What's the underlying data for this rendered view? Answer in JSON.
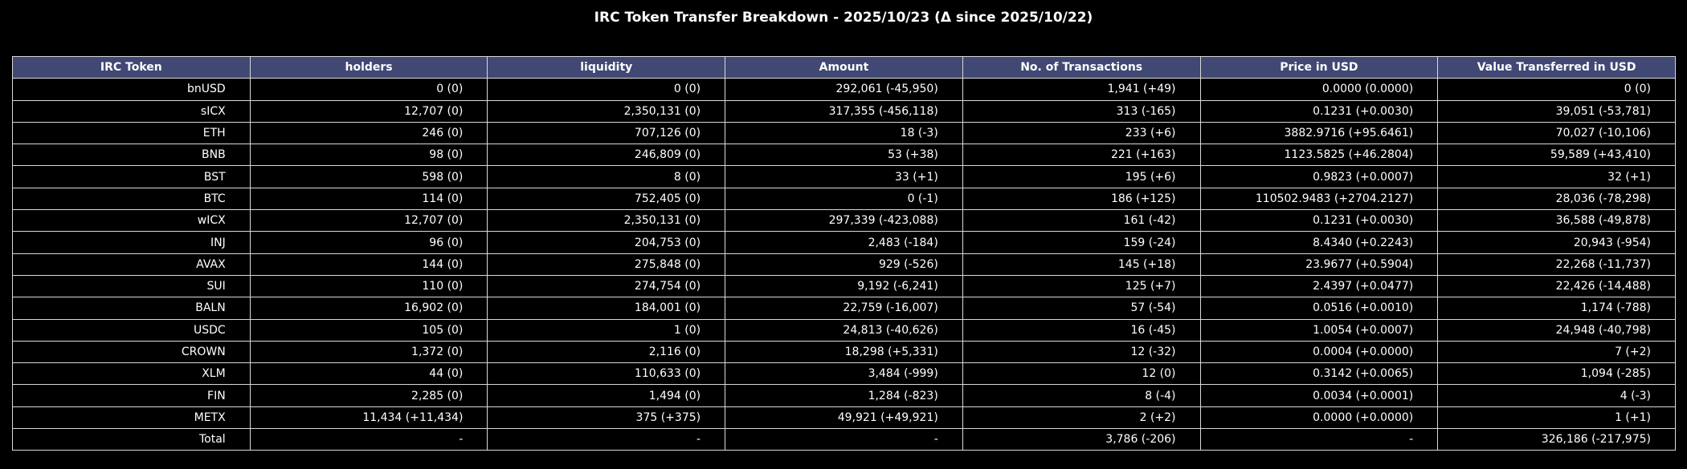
{
  "chart_data": {
    "type": "table",
    "title": "IRC Token Transfer Breakdown - 2025/10/23 (Δ since 2025/10/22)",
    "columns": [
      "IRC Token",
      "holders",
      "liquidity",
      "Amount",
      "No. of Transactions",
      "Price in USD",
      "Value Transferred in USD"
    ],
    "rows": [
      [
        "bnUSD",
        "0 (0)",
        "0 (0)",
        "292,061 (-45,950)",
        "1,941 (+49)",
        "0.0000 (0.0000)",
        "0 (0)"
      ],
      [
        "sICX",
        "12,707 (0)",
        "2,350,131 (0)",
        "317,355 (-456,118)",
        "313 (-165)",
        "0.1231 (+0.0030)",
        "39,051 (-53,781)"
      ],
      [
        "ETH",
        "246 (0)",
        "707,126 (0)",
        "18 (-3)",
        "233 (+6)",
        "3882.9716 (+95.6461)",
        "70,027 (-10,106)"
      ],
      [
        "BNB",
        "98 (0)",
        "246,809 (0)",
        "53 (+38)",
        "221 (+163)",
        "1123.5825 (+46.2804)",
        "59,589 (+43,410)"
      ],
      [
        "BST",
        "598 (0)",
        "8 (0)",
        "33 (+1)",
        "195 (+6)",
        "0.9823 (+0.0007)",
        "32 (+1)"
      ],
      [
        "BTC",
        "114 (0)",
        "752,405 (0)",
        "0 (-1)",
        "186 (+125)",
        "110502.9483 (+2704.2127)",
        "28,036 (-78,298)"
      ],
      [
        "wICX",
        "12,707 (0)",
        "2,350,131 (0)",
        "297,339 (-423,088)",
        "161 (-42)",
        "0.1231 (+0.0030)",
        "36,588 (-49,878)"
      ],
      [
        "INJ",
        "96 (0)",
        "204,753 (0)",
        "2,483 (-184)",
        "159 (-24)",
        "8.4340 (+0.2243)",
        "20,943 (-954)"
      ],
      [
        "AVAX",
        "144 (0)",
        "275,848 (0)",
        "929 (-526)",
        "145 (+18)",
        "23.9677 (+0.5904)",
        "22,268 (-11,737)"
      ],
      [
        "SUI",
        "110 (0)",
        "274,754 (0)",
        "9,192 (-6,241)",
        "125 (+7)",
        "2.4397 (+0.0477)",
        "22,426 (-14,488)"
      ],
      [
        "BALN",
        "16,902 (0)",
        "184,001 (0)",
        "22,759 (-16,007)",
        "57 (-54)",
        "0.0516 (+0.0010)",
        "1,174 (-788)"
      ],
      [
        "USDC",
        "105 (0)",
        "1 (0)",
        "24,813 (-40,626)",
        "16 (-45)",
        "1.0054 (+0.0007)",
        "24,948 (-40,798)"
      ],
      [
        "CROWN",
        "1,372 (0)",
        "2,116 (0)",
        "18,298 (+5,331)",
        "12 (-32)",
        "0.0004 (+0.0000)",
        "7 (+2)"
      ],
      [
        "XLM",
        "44 (0)",
        "110,633 (0)",
        "3,484 (-999)",
        "12 (0)",
        "0.3142 (+0.0065)",
        "1,094 (-285)"
      ],
      [
        "FIN",
        "2,285 (0)",
        "1,494 (0)",
        "1,284 (-823)",
        "8 (-4)",
        "0.0034 (+0.0001)",
        "4 (-3)"
      ],
      [
        "METX",
        "11,434 (+11,434)",
        "375 (+375)",
        "49,921 (+49,921)",
        "2 (+2)",
        "0.0000 (+0.0000)",
        "1 (+1)"
      ],
      [
        "Total",
        "-",
        "-",
        "-",
        "3,786 (-206)",
        "-",
        "326,186 (-217,975)"
      ]
    ],
    "colors": {
      "header_bg": "#414873",
      "cell_bg": "#000000",
      "border": "#d9d9d9",
      "text": "#ffffff"
    }
  }
}
